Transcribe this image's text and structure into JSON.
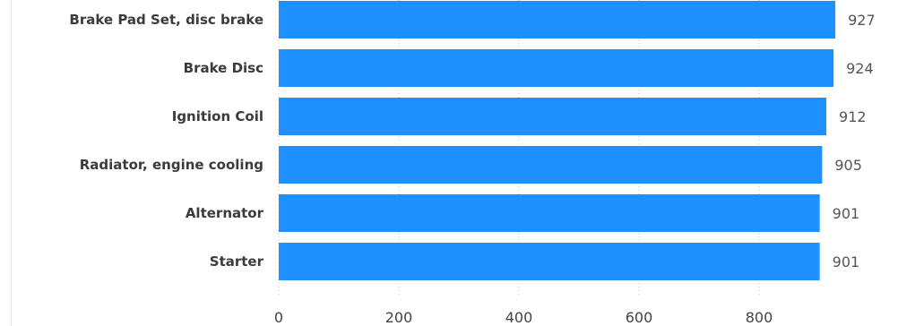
{
  "colors": {
    "bar": "#1e90ff",
    "grid": "#c8c8c8",
    "category_text": "#3b3b3b",
    "value_text": "#555555",
    "tick_text": "#444444"
  },
  "chart_data": {
    "type": "bar",
    "orientation": "horizontal",
    "categories": [
      "Brake Pad Set, disc brake",
      "Brake Disc",
      "Ignition Coil",
      "Radiator, engine cooling",
      "Alternator",
      "Starter"
    ],
    "values": [
      927,
      924,
      912,
      905,
      901,
      901
    ],
    "x_ticks": [
      "0",
      "200",
      "400",
      "600",
      "800"
    ],
    "xlim": [
      0,
      1000
    ],
    "grid": "vertical dotted",
    "legend": "none",
    "title": "",
    "xlabel": "",
    "ylabel": ""
  }
}
